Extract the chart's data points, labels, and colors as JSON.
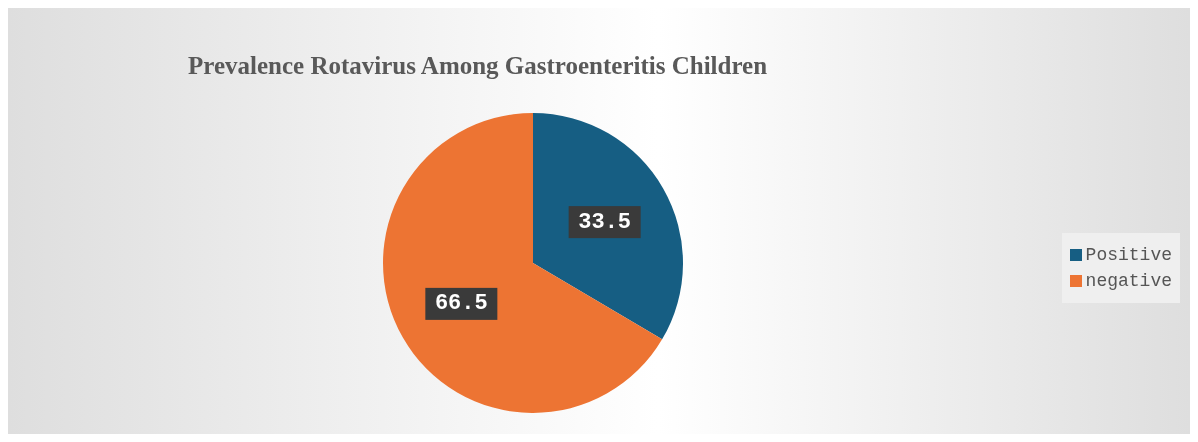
{
  "chart_data": {
    "type": "pie",
    "title": "Prevalence Rotavirus Among Gastroenteritis Children",
    "categories": [
      "Positive",
      "negative"
    ],
    "values": [
      33.5,
      66.5
    ],
    "colors": [
      "#165e83",
      "#ed7433"
    ],
    "data_labels": true,
    "legend": "right"
  }
}
